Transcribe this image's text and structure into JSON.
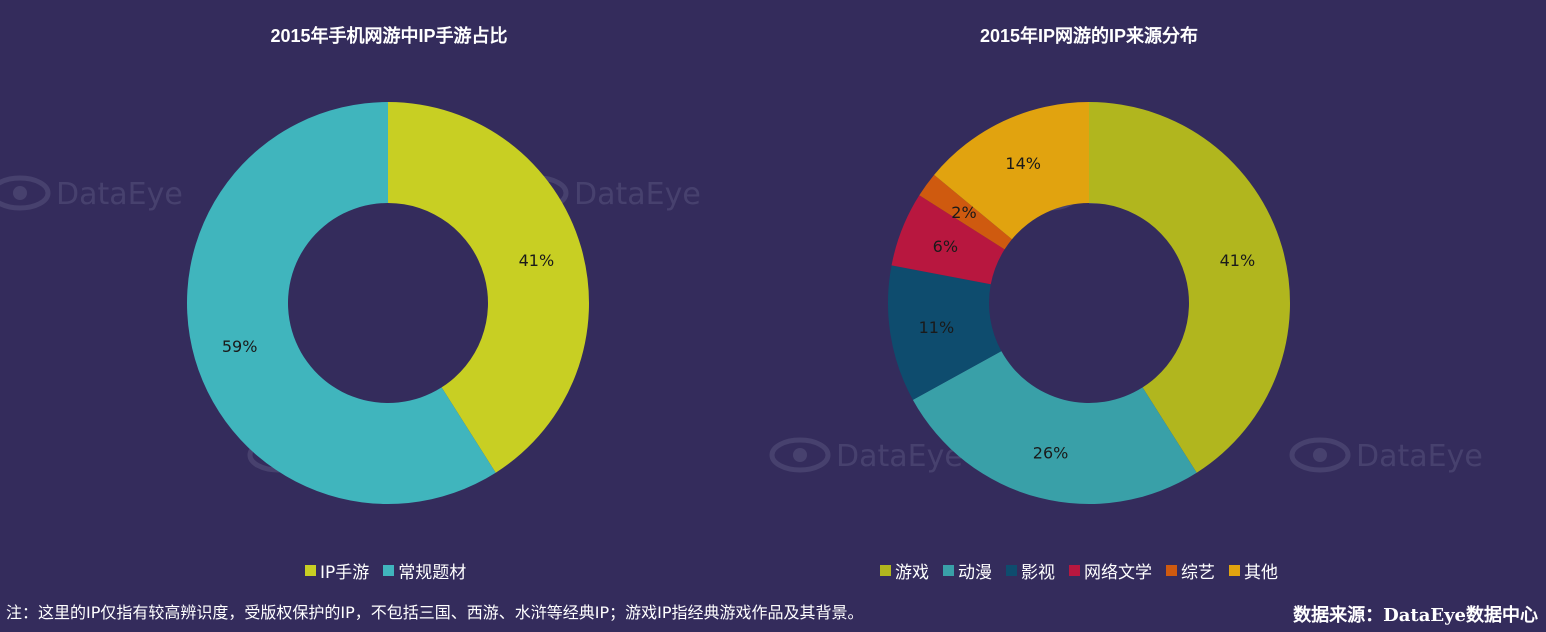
{
  "colors": {
    "background": "#342c5c",
    "watermark": "#4a4470"
  },
  "watermark": {
    "text": "DataEye"
  },
  "chart_data": [
    {
      "type": "pie",
      "donut": true,
      "title": "2015年手机网游中IP手游占比",
      "categories": [
        "IP手游",
        "常规题材"
      ],
      "values": [
        41,
        59
      ],
      "labels": [
        "41%",
        "59%"
      ],
      "colors": [
        "#c8cf23",
        "#40b5bd"
      ],
      "start_angle_deg": 0,
      "direction": "clockwise",
      "legend_position": "bottom"
    },
    {
      "type": "pie",
      "donut": true,
      "title": "2015年IP网游的IP来源分布",
      "categories": [
        "游戏",
        "动漫",
        "影视",
        "网络文学",
        "综艺",
        "其他"
      ],
      "values": [
        41,
        26,
        11,
        6,
        2,
        14
      ],
      "labels": [
        "41%",
        "26%",
        "11%",
        "6%",
        "2%",
        "14%"
      ],
      "colors": [
        "#b1b61e",
        "#39a0a8",
        "#0e4c6e",
        "#b8173f",
        "#cf5a0f",
        "#e1a30f"
      ],
      "start_angle_deg": 0,
      "direction": "clockwise",
      "legend_position": "bottom"
    }
  ],
  "footer": {
    "note": "注：这里的IP仅指有较高辨识度，受版权保护的IP，不包括三国、西游、水浒等经典IP；游戏IP指经典游戏作品及其背景。",
    "source": "数据来源：DataEye数据中心"
  }
}
